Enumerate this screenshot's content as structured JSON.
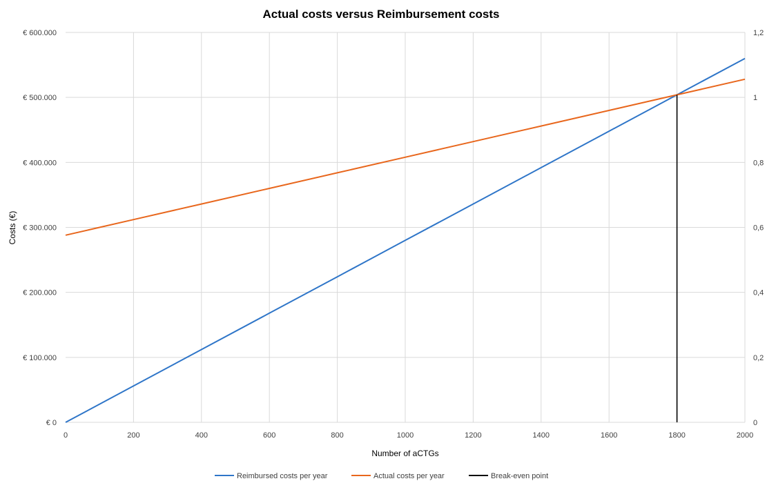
{
  "chart_data": {
    "type": "line",
    "title": "Actual costs versus Reimbursement costs",
    "xlabel": "Number  of aCTGs",
    "ylabel": "Costs (€)",
    "xlim": [
      0,
      2000
    ],
    "ylim": [
      0,
      600000
    ],
    "y2lim": [
      0,
      1.2
    ],
    "grid": true,
    "legend_position": "bottom",
    "x_ticks": [
      0,
      200,
      400,
      600,
      800,
      1000,
      1200,
      1400,
      1600,
      1800,
      2000
    ],
    "x_tick_labels": [
      "0",
      "200",
      "400",
      "600",
      "800",
      "1000",
      "1200",
      "1400",
      "1600",
      "1800",
      "2000"
    ],
    "y_ticks": [
      0,
      100000,
      200000,
      300000,
      400000,
      500000,
      600000
    ],
    "y_tick_labels": [
      "€ 0",
      "€ 100.000",
      "€ 200.000",
      "€ 300.000",
      "€ 400.000",
      "€ 500.000",
      "€ 600.000"
    ],
    "y2_ticks": [
      0,
      0.2,
      0.4,
      0.6,
      0.8,
      1.0,
      1.2
    ],
    "y2_tick_labels": [
      "0",
      "0,2",
      "0,4",
      "0,6",
      "0,8",
      "1",
      "1,2"
    ],
    "series": [
      {
        "name": "Reimbursed costs per year",
        "color": "#2e75c8",
        "x": [
          0,
          200,
          400,
          600,
          800,
          1000,
          1200,
          1400,
          1600,
          1800,
          2000
        ],
        "y": [
          0,
          56000,
          112000,
          168000,
          224000,
          280000,
          336000,
          392000,
          448000,
          504000,
          560000
        ]
      },
      {
        "name": "Actual costs per year",
        "color": "#e8661c",
        "x": [
          0,
          200,
          400,
          600,
          800,
          1000,
          1200,
          1400,
          1600,
          1800,
          2000
        ],
        "y": [
          288000,
          312000,
          336000,
          360000,
          384000,
          408000,
          432000,
          456000,
          480000,
          504000,
          528000
        ]
      },
      {
        "name": "Break-even point",
        "color": "#000000",
        "x": [
          1800,
          1800
        ],
        "y": [
          0,
          504000
        ]
      }
    ]
  }
}
